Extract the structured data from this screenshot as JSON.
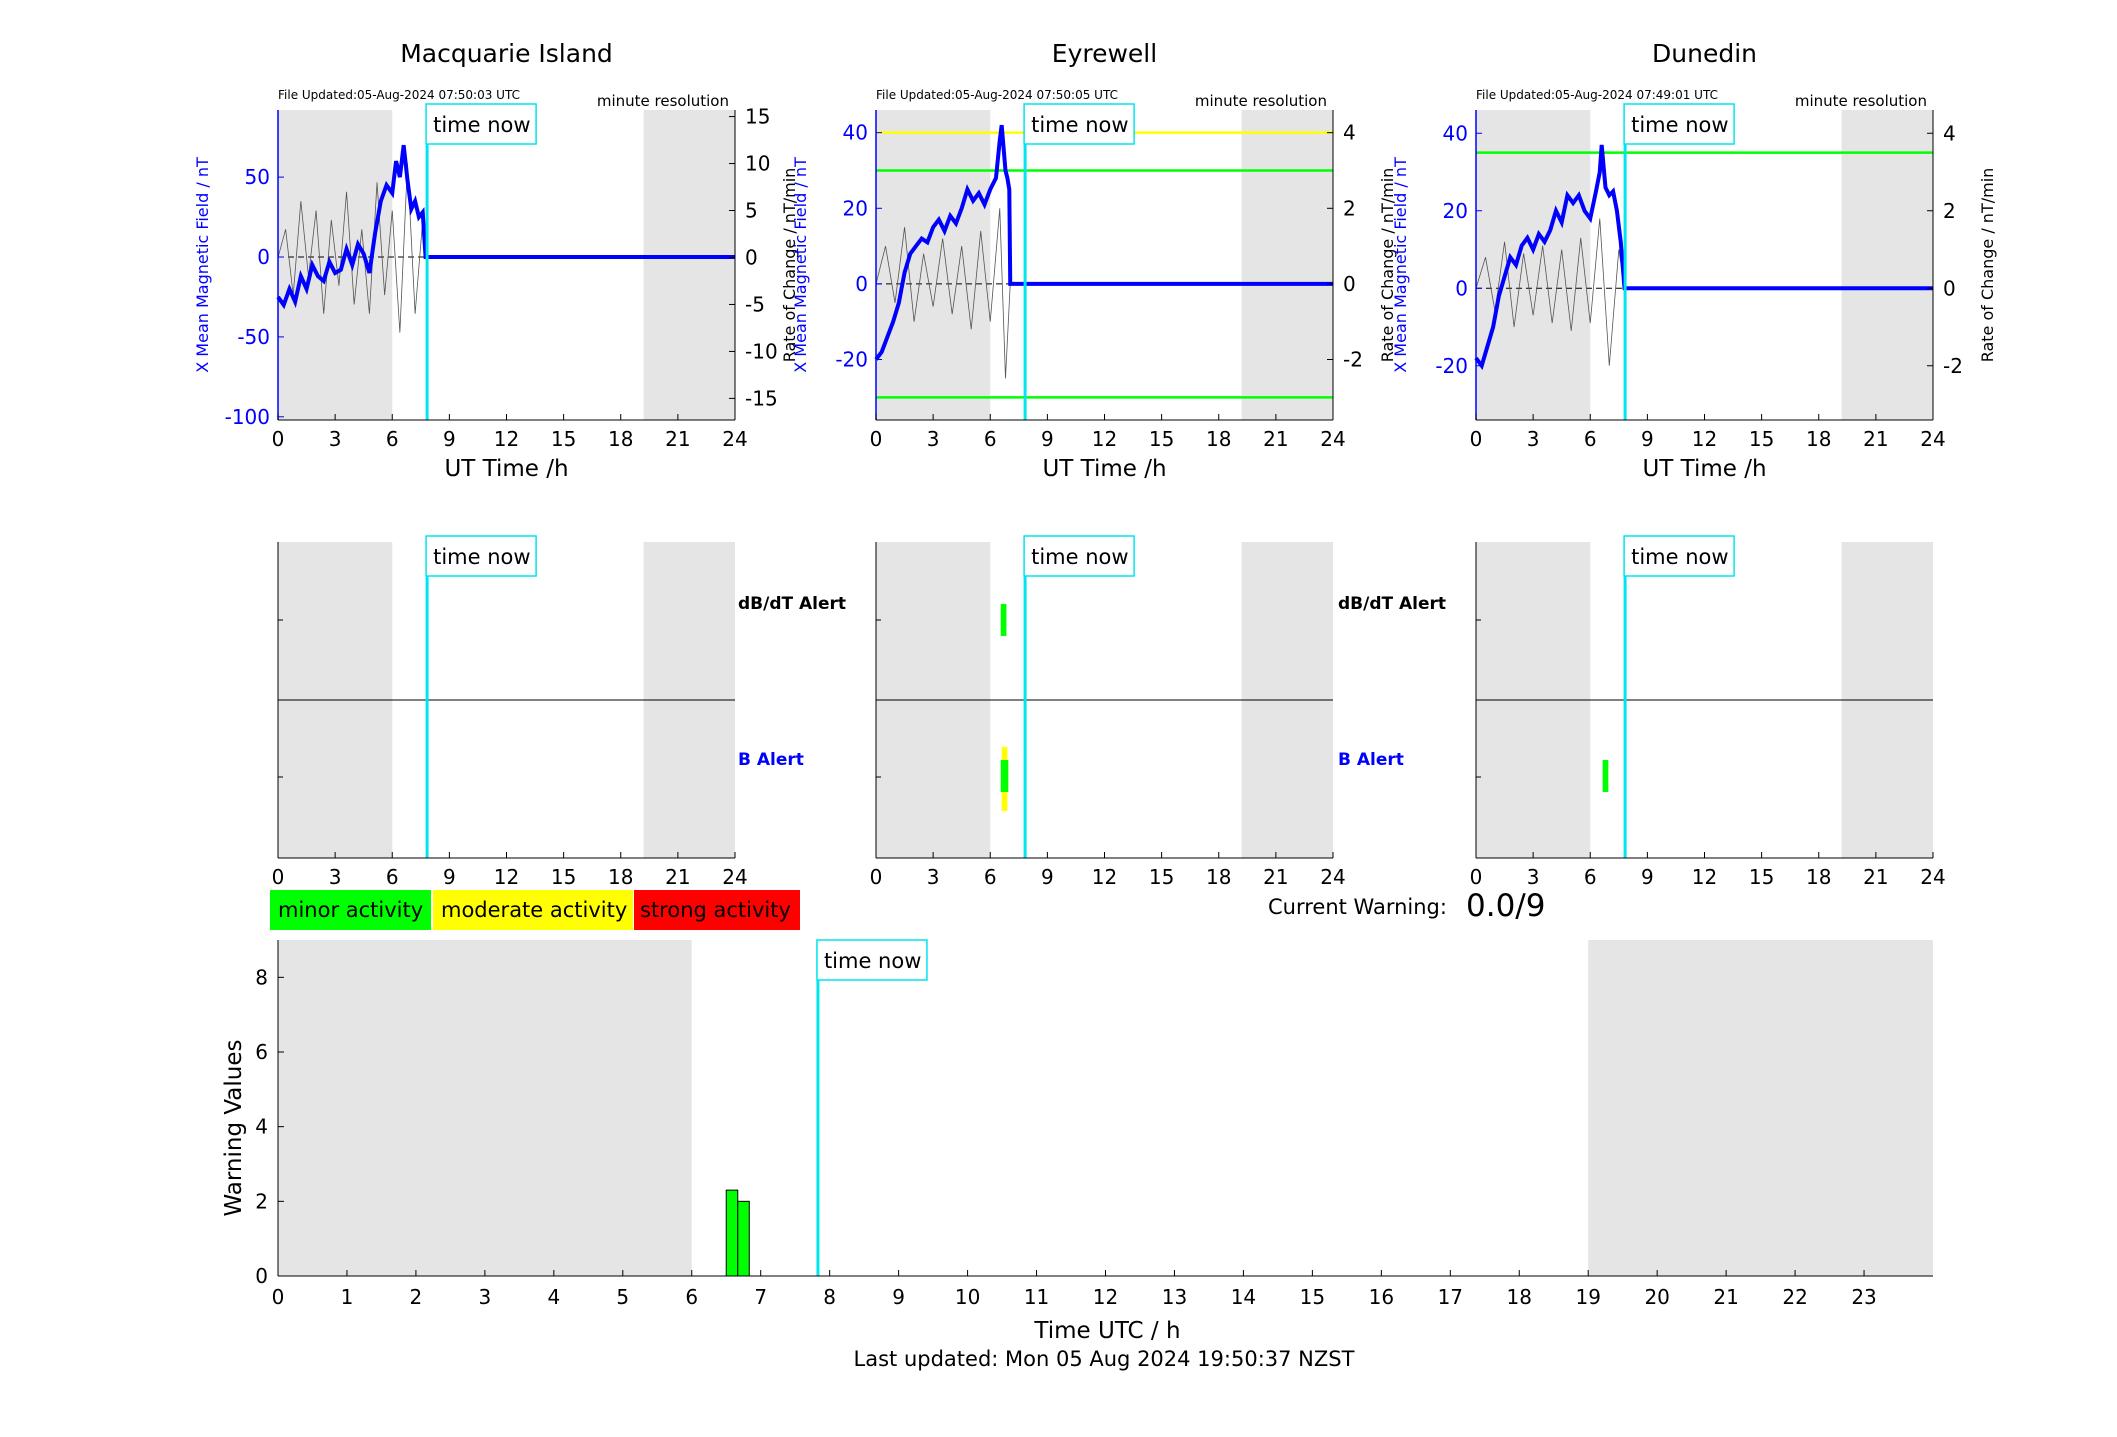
{
  "stations": [
    {
      "name": "Macquarie Island",
      "file_updated": "File Updated:05-Aug-2024 07:50:03 UTC",
      "resolution": "minute resolution",
      "ylabel_left": "X Mean Magnetic Field / nT",
      "ylabel_right": "Rate of Change / nT/min",
      "xlabel": "UT Time /h",
      "left_range": [
        -102,
        92
      ],
      "left_ticks": [
        -100,
        -50,
        0,
        50
      ],
      "right_range": [
        -17.3,
        15.7
      ],
      "right_ticks": [
        -15,
        -10,
        -5,
        0,
        5,
        10,
        15
      ],
      "thresholds": [],
      "field_trace": [
        [
          0,
          -25
        ],
        [
          0.3,
          -30
        ],
        [
          0.6,
          -20
        ],
        [
          0.9,
          -28
        ],
        [
          1.2,
          -12
        ],
        [
          1.5,
          -20
        ],
        [
          1.8,
          -5
        ],
        [
          2.1,
          -12
        ],
        [
          2.4,
          -15
        ],
        [
          2.7,
          -3
        ],
        [
          3,
          -10
        ],
        [
          3.3,
          -8
        ],
        [
          3.6,
          5
        ],
        [
          3.9,
          -5
        ],
        [
          4.2,
          8
        ],
        [
          4.5,
          2
        ],
        [
          4.8,
          -10
        ],
        [
          5.1,
          15
        ],
        [
          5.4,
          35
        ],
        [
          5.7,
          45
        ],
        [
          6,
          40
        ],
        [
          6.2,
          60
        ],
        [
          6.4,
          50
        ],
        [
          6.6,
          70
        ],
        [
          6.8,
          48
        ],
        [
          7.0,
          30
        ],
        [
          7.2,
          35
        ],
        [
          7.4,
          25
        ],
        [
          7.6,
          28
        ],
        [
          7.75,
          0
        ],
        [
          24,
          0
        ]
      ],
      "rate_trace": [
        [
          0,
          0
        ],
        [
          0.4,
          3
        ],
        [
          0.8,
          -4
        ],
        [
          1.2,
          6
        ],
        [
          1.6,
          -2
        ],
        [
          2,
          5
        ],
        [
          2.4,
          -6
        ],
        [
          2.8,
          4
        ],
        [
          3.2,
          -3
        ],
        [
          3.6,
          7
        ],
        [
          4,
          -5
        ],
        [
          4.4,
          3
        ],
        [
          4.8,
          -6
        ],
        [
          5.2,
          8
        ],
        [
          5.6,
          -4
        ],
        [
          6,
          5
        ],
        [
          6.4,
          -8
        ],
        [
          6.8,
          10
        ],
        [
          7.2,
          -6
        ],
        [
          7.6,
          4
        ],
        [
          7.75,
          0
        ]
      ],
      "alerts": [],
      "time_now": 7.83,
      "night_shading": [
        [
          0,
          6
        ],
        [
          19.2,
          24
        ]
      ]
    },
    {
      "name": "Eyrewell",
      "file_updated": "File Updated:05-Aug-2024 07:50:05 UTC",
      "resolution": "minute resolution",
      "ylabel_left": "X Mean Magnetic Field / nT",
      "ylabel_right": "Rate of Change / nT/min",
      "xlabel": "UT Time /h",
      "left_range": [
        -36,
        46
      ],
      "left_ticks": [
        -20,
        0,
        20,
        40
      ],
      "right_range": [
        -3.6,
        4.6
      ],
      "right_ticks": [
        -2,
        0,
        2,
        4
      ],
      "thresholds": [
        {
          "value": 40,
          "color": "#ffff00"
        },
        {
          "value": 30,
          "color": "#00ff00"
        },
        {
          "value": -30,
          "color": "#00ff00"
        }
      ],
      "field_trace": [
        [
          0,
          -20
        ],
        [
          0.3,
          -18
        ],
        [
          0.6,
          -14
        ],
        [
          0.9,
          -10
        ],
        [
          1.2,
          -5
        ],
        [
          1.5,
          3
        ],
        [
          1.8,
          8
        ],
        [
          2.1,
          10
        ],
        [
          2.4,
          12
        ],
        [
          2.7,
          11
        ],
        [
          3,
          15
        ],
        [
          3.3,
          17
        ],
        [
          3.6,
          14
        ],
        [
          3.9,
          18
        ],
        [
          4.2,
          16
        ],
        [
          4.5,
          20
        ],
        [
          4.8,
          25
        ],
        [
          5.1,
          22
        ],
        [
          5.4,
          24
        ],
        [
          5.7,
          21
        ],
        [
          6,
          25
        ],
        [
          6.3,
          28
        ],
        [
          6.5,
          38
        ],
        [
          6.6,
          42
        ],
        [
          6.8,
          30
        ],
        [
          6.9,
          28
        ],
        [
          7.0,
          25
        ],
        [
          7.05,
          0
        ],
        [
          24,
          0
        ]
      ],
      "rate_trace": [
        [
          0,
          0
        ],
        [
          0.5,
          1
        ],
        [
          1,
          -0.5
        ],
        [
          1.5,
          1.5
        ],
        [
          2,
          -1
        ],
        [
          2.5,
          0.8
        ],
        [
          3,
          -0.6
        ],
        [
          3.5,
          1.2
        ],
        [
          4,
          -0.8
        ],
        [
          4.5,
          1
        ],
        [
          5,
          -1.2
        ],
        [
          5.5,
          1.4
        ],
        [
          6,
          -1
        ],
        [
          6.5,
          2
        ],
        [
          6.8,
          -2.5
        ],
        [
          7.05,
          0
        ]
      ],
      "alerts": [
        {
          "type": "dBdt",
          "t_start": 6.55,
          "t_end": 6.85,
          "color": "#00ff00"
        },
        {
          "type": "B",
          "t_start": 6.6,
          "t_end": 6.9,
          "color": "#ffff00"
        },
        {
          "type": "B",
          "t_start": 6.55,
          "t_end": 6.95,
          "color": "#00ff00"
        }
      ],
      "time_now": 7.83,
      "night_shading": [
        [
          0,
          6
        ],
        [
          19.2,
          24
        ]
      ]
    },
    {
      "name": "Dunedin",
      "file_updated": "File Updated:05-Aug-2024 07:49:01 UTC",
      "resolution": "minute resolution",
      "ylabel_left": "X Mean Magnetic Field / nT",
      "ylabel_right": "Rate of Change / nT/min",
      "xlabel": "UT Time /h",
      "left_range": [
        -34,
        46
      ],
      "left_ticks": [
        -20,
        0,
        20,
        40
      ],
      "right_range": [
        -3.4,
        4.6
      ],
      "right_ticks": [
        -2,
        0,
        2,
        4
      ],
      "thresholds": [
        {
          "value": 35,
          "color": "#00ff00"
        }
      ],
      "field_trace": [
        [
          0,
          -18
        ],
        [
          0.3,
          -20
        ],
        [
          0.6,
          -15
        ],
        [
          0.9,
          -10
        ],
        [
          1.2,
          -2
        ],
        [
          1.5,
          3
        ],
        [
          1.8,
          8
        ],
        [
          2.1,
          6
        ],
        [
          2.4,
          11
        ],
        [
          2.7,
          13
        ],
        [
          3,
          10
        ],
        [
          3.3,
          14
        ],
        [
          3.6,
          12
        ],
        [
          3.9,
          15
        ],
        [
          4.2,
          20
        ],
        [
          4.5,
          17
        ],
        [
          4.8,
          24
        ],
        [
          5.1,
          22
        ],
        [
          5.4,
          24
        ],
        [
          5.7,
          20
        ],
        [
          6,
          18
        ],
        [
          6.3,
          25
        ],
        [
          6.5,
          30
        ],
        [
          6.6,
          37
        ],
        [
          6.8,
          26
        ],
        [
          7.0,
          24
        ],
        [
          7.2,
          25
        ],
        [
          7.4,
          20
        ],
        [
          7.6,
          12
        ],
        [
          7.8,
          0
        ],
        [
          24,
          0
        ]
      ],
      "rate_trace": [
        [
          0,
          0
        ],
        [
          0.5,
          0.8
        ],
        [
          1,
          -0.6
        ],
        [
          1.5,
          1.2
        ],
        [
          2,
          -1
        ],
        [
          2.5,
          0.9
        ],
        [
          3,
          -0.7
        ],
        [
          3.5,
          1.1
        ],
        [
          4,
          -0.9
        ],
        [
          4.5,
          1
        ],
        [
          5,
          -1.1
        ],
        [
          5.5,
          1.3
        ],
        [
          6,
          -0.9
        ],
        [
          6.5,
          1.8
        ],
        [
          7,
          -2
        ],
        [
          7.5,
          1
        ],
        [
          7.8,
          0
        ]
      ],
      "alerts": [
        {
          "type": "B",
          "t_start": 6.65,
          "t_end": 6.95,
          "color": "#00ff00"
        }
      ],
      "time_now": 7.83,
      "night_shading": [
        [
          0,
          6
        ],
        [
          19.2,
          24
        ]
      ]
    }
  ],
  "x_ticks": [
    0,
    3,
    6,
    9,
    12,
    15,
    18,
    21,
    24
  ],
  "time_now_label": "time now",
  "alert_labels": {
    "dbdt": "dB/dT Alert",
    "b": "B Alert"
  },
  "legend": [
    {
      "label": "minor activity",
      "color": "#00ff00"
    },
    {
      "label": "moderate activity",
      "color": "#ffff00"
    },
    {
      "label": "strong activity",
      "color": "#ff0000"
    }
  ],
  "current_warning": {
    "label": "Current Warning:",
    "value": "0.0/9"
  },
  "chart_data": {
    "type": "bar",
    "ylabel": "Warning Values",
    "xlabel": "Time UTC / h",
    "xlim": [
      0,
      24
    ],
    "ylim": [
      0,
      9
    ],
    "y_ticks": [
      0,
      2,
      4,
      6,
      8
    ],
    "x_ticks": [
      0,
      1,
      2,
      3,
      4,
      5,
      6,
      7,
      8,
      9,
      10,
      11,
      12,
      13,
      14,
      15,
      16,
      17,
      18,
      19,
      20,
      21,
      22,
      23
    ],
    "bars": [
      {
        "x": 6.5,
        "width": 0.167,
        "value": 2.3,
        "color": "#00ff00"
      },
      {
        "x": 6.667,
        "width": 0.167,
        "value": 2.0,
        "color": "#00ff00"
      }
    ],
    "time_now": 7.83,
    "night_shading": [
      [
        0,
        6
      ],
      [
        19,
        24
      ]
    ]
  },
  "colors": {
    "field": "#0000ff",
    "rate": "#000000",
    "time_now": "#00e5ee",
    "shade": "#e5e5e5"
  },
  "footer": "Last updated: Mon 05 Aug 2024 19:50:37 NZST"
}
